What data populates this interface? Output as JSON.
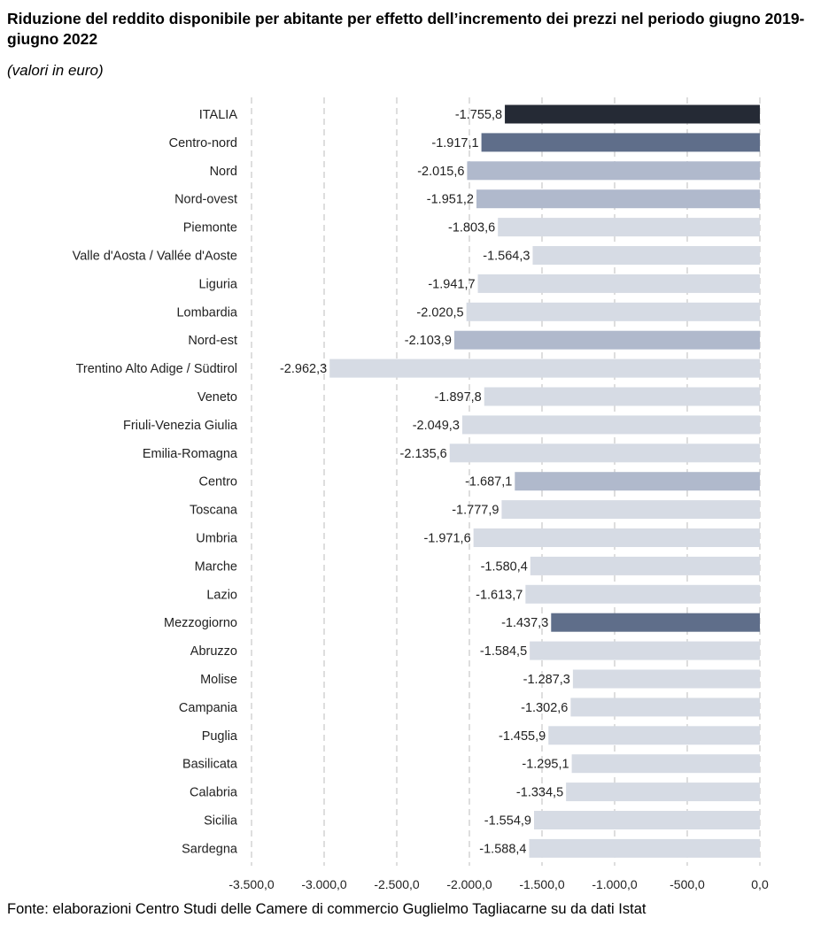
{
  "chart_data": {
    "type": "bar",
    "orientation": "horizontal",
    "title": "Riduzione del reddito disponibile per abitante per effetto dell’incremento dei prezzi nel periodo giugno 2019-giugno 2022",
    "subtitle": "(valori in euro)",
    "source": "Fonte: elaborazioni Centro Studi delle Camere di commercio Guglielmo Tagliacarne su da dati Istat",
    "categories": [
      "ITALIA",
      "Centro-nord",
      "Nord",
      "Nord-ovest",
      "Piemonte",
      "Valle d'Aosta / Vallée d'Aoste",
      "Liguria",
      "Lombardia",
      "Nord-est",
      "Trentino Alto Adige / Südtirol",
      "Veneto",
      "Friuli-Venezia Giulia",
      "Emilia-Romagna",
      "Centro",
      "Toscana",
      "Umbria",
      "Marche",
      "Lazio",
      "Mezzogiorno",
      "Abruzzo",
      "Molise",
      "Campania",
      "Puglia",
      "Basilicata",
      "Calabria",
      "Sicilia",
      "Sardegna"
    ],
    "values": [
      -1755.8,
      -1917.1,
      -2015.6,
      -1951.2,
      -1803.6,
      -1564.3,
      -1941.7,
      -2020.5,
      -2103.9,
      -2962.3,
      -1897.8,
      -2049.3,
      -2135.6,
      -1687.1,
      -1777.9,
      -1971.6,
      -1580.4,
      -1613.7,
      -1437.3,
      -1584.5,
      -1287.3,
      -1302.6,
      -1455.9,
      -1295.1,
      -1334.5,
      -1554.9,
      -1588.4
    ],
    "value_labels": [
      "-1.755,8",
      "-1.917,1",
      "-2.015,6",
      "-1.951,2",
      "-1.803,6",
      "-1.564,3",
      "-1.941,7",
      "-2.020,5",
      "-2.103,9",
      "-2.962,3",
      "-1.897,8",
      "-2.049,3",
      "-2.135,6",
      "-1.687,1",
      "-1.777,9",
      "-1.971,6",
      "-1.580,4",
      "-1.613,7",
      "-1.437,3",
      "-1.584,5",
      "-1.287,3",
      "-1.302,6",
      "-1.455,9",
      "-1.295,1",
      "-1.334,5",
      "-1.554,9",
      "-1.588,4"
    ],
    "levels": [
      "italy",
      "macro",
      "area",
      "area",
      "region",
      "region",
      "region",
      "region",
      "area",
      "region",
      "region",
      "region",
      "region",
      "area",
      "region",
      "region",
      "region",
      "region",
      "macro",
      "region",
      "region",
      "region",
      "region",
      "region",
      "region",
      "region",
      "region"
    ],
    "level_colors": {
      "italy": "#252a35",
      "macro": "#5f6e8a",
      "area": "#b0b9cc",
      "region": "#d6dbe4"
    },
    "xlim": [
      -3500,
      0
    ],
    "xticks": [
      -3500,
      -3000,
      -2500,
      -2000,
      -1500,
      -1000,
      -500,
      0
    ],
    "xtick_labels": [
      "-3.500,0",
      "-3.000,0",
      "-2.500,0",
      "-2.000,0",
      "-1.500,0",
      "-1.000,0",
      "-500,0",
      "0,0"
    ],
    "grid": "vertical dashed"
  }
}
